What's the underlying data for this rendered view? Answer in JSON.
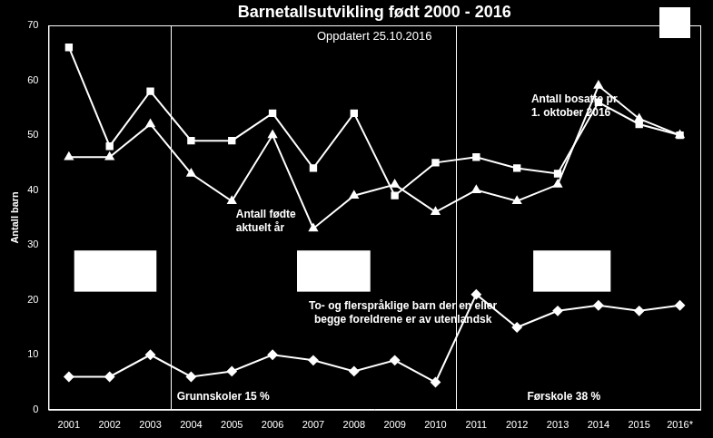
{
  "chart_data": {
    "type": "line",
    "title": "Barnetallsutvikling født 2000 - 2016",
    "subtitle": "Oppdatert 25.10.2016",
    "y_label": "Antall barn",
    "categories": [
      "2001",
      "2002",
      "2003",
      "2004",
      "2005",
      "2006",
      "2007",
      "2008",
      "2009",
      "2010",
      "2011",
      "2012",
      "2013",
      "2014",
      "2015",
      "2016*"
    ],
    "series": [
      {
        "name": "Antall bosatte pr.\n1. oktober 2016",
        "color": "#ffffff",
        "marker": "square",
        "values": [
          66,
          48,
          58,
          49,
          49,
          54,
          44,
          54,
          39,
          45,
          46,
          44,
          43,
          56,
          52,
          50
        ]
      },
      {
        "name": "Antall fødte\naktuelt år",
        "color": "#ffffff",
        "marker": "triangle",
        "values": [
          46,
          46,
          52,
          43,
          38,
          50,
          33,
          39,
          41,
          36,
          40,
          38,
          41,
          59,
          53,
          50
        ]
      },
      {
        "name": "To- og flerspråklige barn der en eller\nbegge foreldrene er av utenlandsk",
        "color": "#ffffff",
        "marker": "diamond",
        "values": [
          6,
          6,
          10,
          6,
          7,
          10,
          9,
          7,
          9,
          5,
          21,
          15,
          18,
          19,
          18,
          19
        ]
      }
    ],
    "annotations": [
      "Grunnskoler 15 %",
      "Førskole 38 %"
    ],
    "ylim": [
      0,
      70
    ],
    "yticks": [
      0,
      10,
      20,
      30,
      40,
      50,
      60,
      70
    ],
    "grid": false
  }
}
